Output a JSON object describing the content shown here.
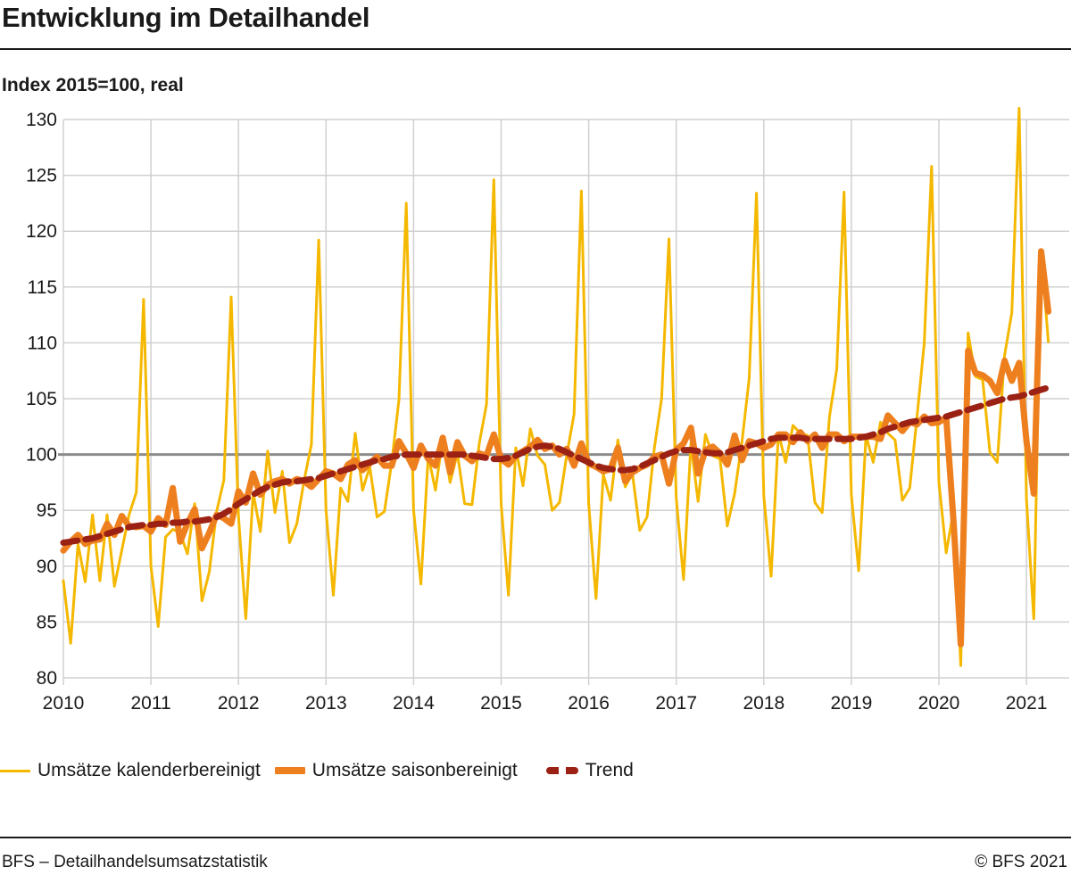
{
  "header": {
    "title": "Entwicklung im Detailhandel"
  },
  "footer": {
    "source": "BFS – Detailhandelsumsatzstatistik",
    "copyright": "© BFS 2021"
  },
  "colors": {
    "kalender": "#f5b800",
    "saison": "#ee7f1f",
    "trend": "#9b2114",
    "grid": "#d0d0d0",
    "reference": "#8c8c8c"
  },
  "chart_data": {
    "type": "line",
    "title": "Entwicklung im Detailhandel",
    "ylabel": "Index 2015=100, real",
    "ylim": [
      80,
      130
    ],
    "xlim": [
      2010,
      2021.35
    ],
    "x_ticks": [
      "2010",
      "2011",
      "2012",
      "2013",
      "2014",
      "2015",
      "2016",
      "2017",
      "2018",
      "2019",
      "2020",
      "2021"
    ],
    "y_ticks": [
      "80",
      "85",
      "90",
      "95",
      "100",
      "105",
      "110",
      "115",
      "120",
      "125",
      "130"
    ],
    "reference_line": 100,
    "grid": "vertical lines at years, horizontal lines at every 5 index points",
    "legend_position": "bottom",
    "x_start": "2010-01",
    "x_step": "month",
    "series": [
      {
        "name": "Umsätze kalenderbereinigt",
        "style": "solid-thin",
        "values": [
          88.7,
          83.1,
          92.0,
          88.6,
          94.6,
          88.7,
          94.6,
          88.2,
          91.4,
          94.6,
          96.6,
          113.9,
          90.0,
          84.6,
          92.6,
          93.3,
          93.0,
          91.1,
          95.6,
          86.9,
          89.5,
          94.9,
          97.7,
          114.1,
          94.5,
          85.3,
          96.6,
          93.1,
          100.3,
          94.8,
          98.5,
          92.1,
          93.8,
          97.7,
          100.9,
          119.2,
          95.0,
          87.4,
          97.0,
          95.8,
          101.9,
          96.8,
          98.9,
          94.4,
          94.9,
          99.3,
          104.9,
          122.5,
          95.0,
          88.4,
          99.9,
          96.8,
          101.5,
          97.5,
          100.1,
          95.6,
          95.5,
          101.0,
          104.5,
          124.6,
          95.6,
          87.4,
          100.6,
          97.2,
          102.3,
          99.9,
          99.1,
          95.0,
          95.7,
          100.0,
          103.6,
          123.6,
          95.6,
          87.1,
          98.2,
          95.9,
          101.3,
          97.1,
          98.3,
          93.2,
          94.4,
          100.6,
          105.0,
          119.3,
          96.1,
          88.8,
          101.0,
          95.8,
          101.8,
          99.9,
          99.6,
          93.6,
          96.5,
          101.1,
          106.8,
          123.4,
          96.3,
          89.1,
          101.9,
          99.3,
          102.6,
          101.9,
          101.7,
          95.7,
          94.8,
          103.4,
          107.6,
          123.5,
          96.4,
          89.6,
          101.7,
          99.3,
          102.9,
          101.9,
          101.3,
          95.9,
          97.0,
          103.4,
          110.0,
          125.8,
          97.5,
          91.2,
          95.0,
          81.1,
          110.9,
          107.0,
          106.7,
          100.2,
          99.3,
          108.9,
          112.7,
          131.0,
          96.0,
          85.3,
          118.3,
          110.1
        ]
      },
      {
        "name": "Umsätze saisonbereinigt",
        "style": "solid-thick",
        "values": [
          91.4,
          92.2,
          92.8,
          92.0,
          92.3,
          92.4,
          93.8,
          92.8,
          94.5,
          93.6,
          93.5,
          93.6,
          93.1,
          94.3,
          93.7,
          97.0,
          92.2,
          93.8,
          95.1,
          91.6,
          93.0,
          94.6,
          94.3,
          93.8,
          96.7,
          95.7,
          98.3,
          96.4,
          97.3,
          97.6,
          97.8,
          97.4,
          97.8,
          97.6,
          97.1,
          97.8,
          98.5,
          98.3,
          97.8,
          99.1,
          99.5,
          98.6,
          99.2,
          99.8,
          99.0,
          99.0,
          101.2,
          100.1,
          98.8,
          100.8,
          99.6,
          99.0,
          101.5,
          98.4,
          101.1,
          99.9,
          99.4,
          100.1,
          99.9,
          101.8,
          99.6,
          99.1,
          99.9,
          100.3,
          100.7,
          101.3,
          100.5,
          100.8,
          100.0,
          100.5,
          99.0,
          101.0,
          99.2,
          98.9,
          98.5,
          98.7,
          100.6,
          97.6,
          98.4,
          98.8,
          99.1,
          99.8,
          100.0,
          97.4,
          100.4,
          101.0,
          102.4,
          98.3,
          100.4,
          100.7,
          100.1,
          99.1,
          101.7,
          99.5,
          101.2,
          101.0,
          100.6,
          100.9,
          101.8,
          101.8,
          101.1,
          102.0,
          101.2,
          101.8,
          100.6,
          101.8,
          101.8,
          101.2,
          101.6,
          101.6,
          101.6,
          101.6,
          101.4,
          103.5,
          102.8,
          102.1,
          102.9,
          102.7,
          103.4,
          102.8,
          102.9,
          103.3,
          94.0,
          83.0,
          109.3,
          107.3,
          107.1,
          106.6,
          105.5,
          108.4,
          106.6,
          108.2,
          101.2,
          96.5,
          118.2,
          112.8
        ]
      },
      {
        "name": "Trend",
        "style": "dashed-thick",
        "values": [
          92.1,
          92.2,
          92.3,
          92.4,
          92.5,
          92.7,
          92.9,
          93.1,
          93.3,
          93.5,
          93.6,
          93.7,
          93.7,
          93.8,
          93.8,
          93.9,
          93.9,
          94.0,
          94.0,
          94.1,
          94.2,
          94.4,
          94.7,
          95.1,
          95.6,
          96.0,
          96.4,
          96.8,
          97.1,
          97.3,
          97.5,
          97.6,
          97.6,
          97.7,
          97.8,
          97.9,
          98.1,
          98.3,
          98.5,
          98.7,
          98.9,
          99.1,
          99.3,
          99.5,
          99.6,
          99.8,
          99.9,
          100.0,
          100.0,
          100.0,
          100.0,
          100.0,
          100.0,
          100.0,
          100.0,
          100.0,
          99.9,
          99.8,
          99.7,
          99.6,
          99.6,
          99.7,
          99.9,
          100.2,
          100.5,
          100.7,
          100.8,
          100.7,
          100.5,
          100.2,
          99.9,
          99.6,
          99.3,
          99.0,
          98.8,
          98.7,
          98.6,
          98.6,
          98.7,
          98.9,
          99.2,
          99.5,
          99.8,
          100.1,
          100.3,
          100.4,
          100.4,
          100.3,
          100.2,
          100.1,
          100.1,
          100.2,
          100.4,
          100.6,
          100.8,
          101.0,
          101.2,
          101.4,
          101.5,
          101.5,
          101.5,
          101.5,
          101.4,
          101.4,
          101.4,
          101.4,
          101.4,
          101.4,
          101.4,
          101.5,
          101.6,
          101.8,
          102.0,
          102.3,
          102.5,
          102.7,
          102.9,
          103.0,
          103.1,
          103.2,
          103.3,
          103.4,
          103.6,
          103.8,
          104.0,
          104.2,
          104.4,
          104.6,
          104.8,
          105.0,
          105.1,
          105.2,
          105.4,
          105.6,
          105.8,
          106.0
        ]
      }
    ]
  }
}
